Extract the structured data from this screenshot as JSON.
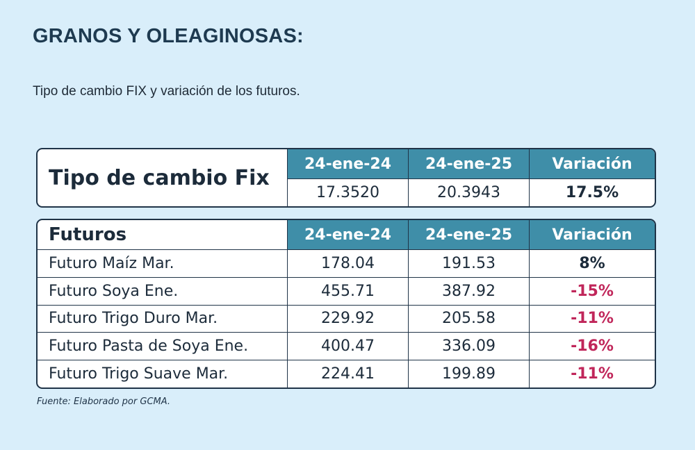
{
  "title": "GRANOS Y OLEAGINOSAS:",
  "subtitle": "Tipo de cambio FIX y variación de los futuros.",
  "fx_table": {
    "label": "Tipo de cambio Fix",
    "headers": [
      "24-ene-24",
      "24-ene-25",
      "Variación"
    ],
    "values": [
      "17.3520",
      "20.3943",
      "17.5%"
    ]
  },
  "futures_table": {
    "label": "Futuros",
    "headers": [
      "24-ene-24",
      "24-ene-25",
      "Variación"
    ],
    "rows": [
      {
        "name": "Futuro Maíz Mar.",
        "v1": "178.04",
        "v2": "191.53",
        "var": "8%"
      },
      {
        "name": "Futuro Soya Ene.",
        "v1": "455.71",
        "v2": "387.92",
        "var": "-15%"
      },
      {
        "name": "Futuro Trigo Duro Mar.",
        "v1": "229.92",
        "v2": "205.58",
        "var": "-11%"
      },
      {
        "name": "Futuro Pasta de Soya Ene.",
        "v1": "400.47",
        "v2": "336.09",
        "var": "-16%"
      },
      {
        "name": "Futuro Trigo Suave Mar.",
        "v1": "224.41",
        "v2": "199.89",
        "var": "-11%"
      }
    ]
  },
  "source": "Fuente: Elaborado por GCMA.",
  "colors": {
    "header_bg": "#3f8ea8",
    "negative": "#c0265a",
    "background": "#d9eefa"
  }
}
